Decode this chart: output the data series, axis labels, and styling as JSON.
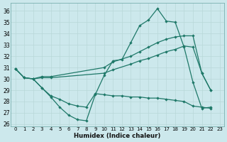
{
  "background_color": "#cce8ec",
  "grid_color": "#aecfcf",
  "line_color": "#1e7868",
  "xlabel": "Humidex (Indice chaleur)",
  "xlim": [
    -0.5,
    23.5
  ],
  "ylim": [
    25.8,
    36.7
  ],
  "yticks": [
    26,
    27,
    28,
    29,
    30,
    31,
    32,
    33,
    34,
    35,
    36
  ],
  "xticks": [
    0,
    1,
    2,
    3,
    4,
    5,
    6,
    7,
    8,
    9,
    10,
    11,
    12,
    13,
    14,
    15,
    16,
    17,
    18,
    19,
    20,
    21,
    22,
    23
  ],
  "line1_x": [
    0,
    1,
    2,
    3,
    4,
    5,
    6,
    7,
    8,
    9,
    10,
    11,
    12,
    13,
    14,
    15,
    16,
    17,
    18,
    19,
    20,
    21,
    22
  ],
  "line1_y": [
    30.9,
    30.1,
    30.0,
    29.2,
    28.4,
    27.5,
    26.8,
    26.4,
    26.3,
    28.6,
    30.3,
    31.6,
    31.7,
    33.2,
    34.7,
    35.2,
    36.2,
    35.1,
    35.0,
    32.8,
    29.7,
    27.4,
    27.5
  ],
  "line2_x": [
    0,
    1,
    2,
    3,
    4,
    10,
    11,
    13,
    14,
    15,
    16,
    17,
    18,
    19,
    20,
    21,
    22
  ],
  "line2_y": [
    30.9,
    30.1,
    30.0,
    30.2,
    30.2,
    31.0,
    31.5,
    32.0,
    32.4,
    32.8,
    33.2,
    33.5,
    33.7,
    33.8,
    33.8,
    30.5,
    29.0
  ],
  "line3_x": [
    0,
    1,
    2,
    3,
    4,
    10,
    11,
    13,
    14,
    15,
    16,
    17,
    18,
    19,
    20,
    21,
    22
  ],
  "line3_y": [
    30.9,
    30.1,
    30.0,
    30.1,
    30.1,
    30.5,
    30.8,
    31.3,
    31.6,
    31.8,
    32.1,
    32.4,
    32.6,
    32.9,
    32.8,
    30.5,
    29.0
  ],
  "line4_x": [
    2,
    3,
    4,
    5,
    6,
    7,
    8,
    9,
    10,
    11,
    12,
    13,
    14,
    15,
    16,
    17,
    18,
    19,
    20,
    21,
    22
  ],
  "line4_y": [
    30.0,
    29.2,
    28.5,
    28.2,
    27.8,
    27.6,
    27.5,
    28.7,
    28.6,
    28.5,
    28.5,
    28.4,
    28.4,
    28.3,
    28.3,
    28.2,
    28.1,
    28.0,
    27.6,
    27.5,
    27.4
  ]
}
